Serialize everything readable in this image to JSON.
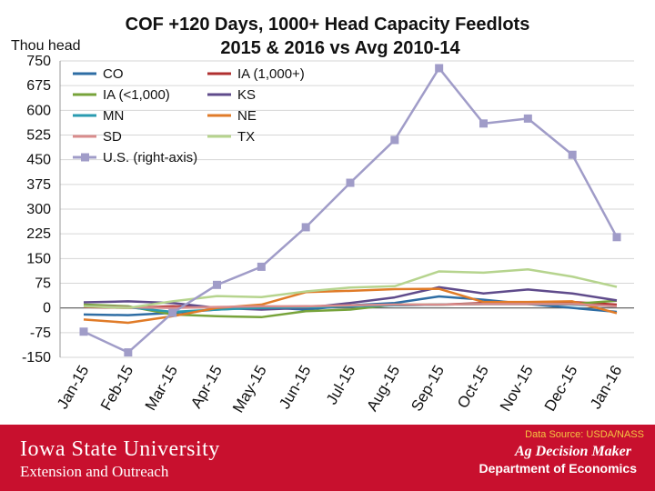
{
  "chart_data": {
    "type": "line",
    "title": "COF +120 Days, 1000+ Head Capacity Feedlots",
    "subtitle": "2015 & 2016 vs Avg 2010-14",
    "ylabel": "Thou head",
    "ylim": [
      -150,
      750
    ],
    "yticks": [
      "750",
      "675",
      "600",
      "525",
      "450",
      "375",
      "300",
      "225",
      "150",
      "75",
      "0",
      "-75",
      "-150"
    ],
    "categories": [
      "Jan-15",
      "Feb-15",
      "Mar-15",
      "Apr-15",
      "May-15",
      "Jun-15",
      "Jul-15",
      "Aug-15",
      "Sep-15",
      "Oct-15",
      "Nov-15",
      "Dec-15",
      "Jan-16"
    ],
    "series": [
      {
        "name": "CO",
        "color": "#2e6da4",
        "marker": false,
        "values": [
          -20,
          -22,
          -15,
          -5,
          2,
          -5,
          8,
          15,
          35,
          25,
          12,
          0,
          -12
        ]
      },
      {
        "name": "IA (1,000+)",
        "color": "#b03030",
        "marker": false,
        "values": [
          3,
          0,
          5,
          2,
          3,
          5,
          7,
          8,
          10,
          15,
          15,
          18,
          10
        ]
      },
      {
        "name": "IA (<1,000)",
        "color": "#77a33a",
        "marker": false,
        "values": [
          10,
          5,
          -20,
          -25,
          -28,
          -10,
          -5,
          10,
          10,
          12,
          12,
          12,
          22
        ]
      },
      {
        "name": "KS",
        "color": "#5f4b8b",
        "marker": false,
        "values": [
          17,
          20,
          15,
          0,
          -5,
          0,
          15,
          32,
          63,
          44,
          56,
          44,
          23
        ]
      },
      {
        "name": "MN",
        "color": "#2a9bb0",
        "marker": false,
        "values": [
          5,
          2,
          -12,
          -5,
          0,
          2,
          5,
          8,
          10,
          12,
          12,
          10,
          5
        ]
      },
      {
        "name": "NE",
        "color": "#e07b28",
        "marker": false,
        "values": [
          -35,
          -45,
          -25,
          0,
          10,
          48,
          52,
          57,
          58,
          18,
          18,
          20,
          -16
        ]
      },
      {
        "name": "SD",
        "color": "#d98c8c",
        "marker": false,
        "values": [
          5,
          2,
          0,
          3,
          5,
          5,
          8,
          10,
          10,
          12,
          12,
          12,
          5
        ]
      },
      {
        "name": "TX",
        "color": "#b6d48e",
        "marker": false,
        "values": [
          5,
          0,
          20,
          36,
          33,
          50,
          62,
          66,
          111,
          107,
          117,
          95,
          64
        ]
      },
      {
        "name": "U.S. (right-axis)",
        "color": "#a09cc8",
        "marker": true,
        "values": [
          -72,
          -135,
          -15,
          70,
          125,
          245,
          380,
          510,
          728,
          560,
          575,
          465,
          215
        ]
      }
    ],
    "legend_position": "top-left",
    "grid": true
  },
  "footer": {
    "source": "Data Source: USDA/NASS",
    "university": "Iowa State University",
    "unit": "Extension and Outreach",
    "program": "Ag Decision Maker",
    "department": "Department of Economics"
  }
}
